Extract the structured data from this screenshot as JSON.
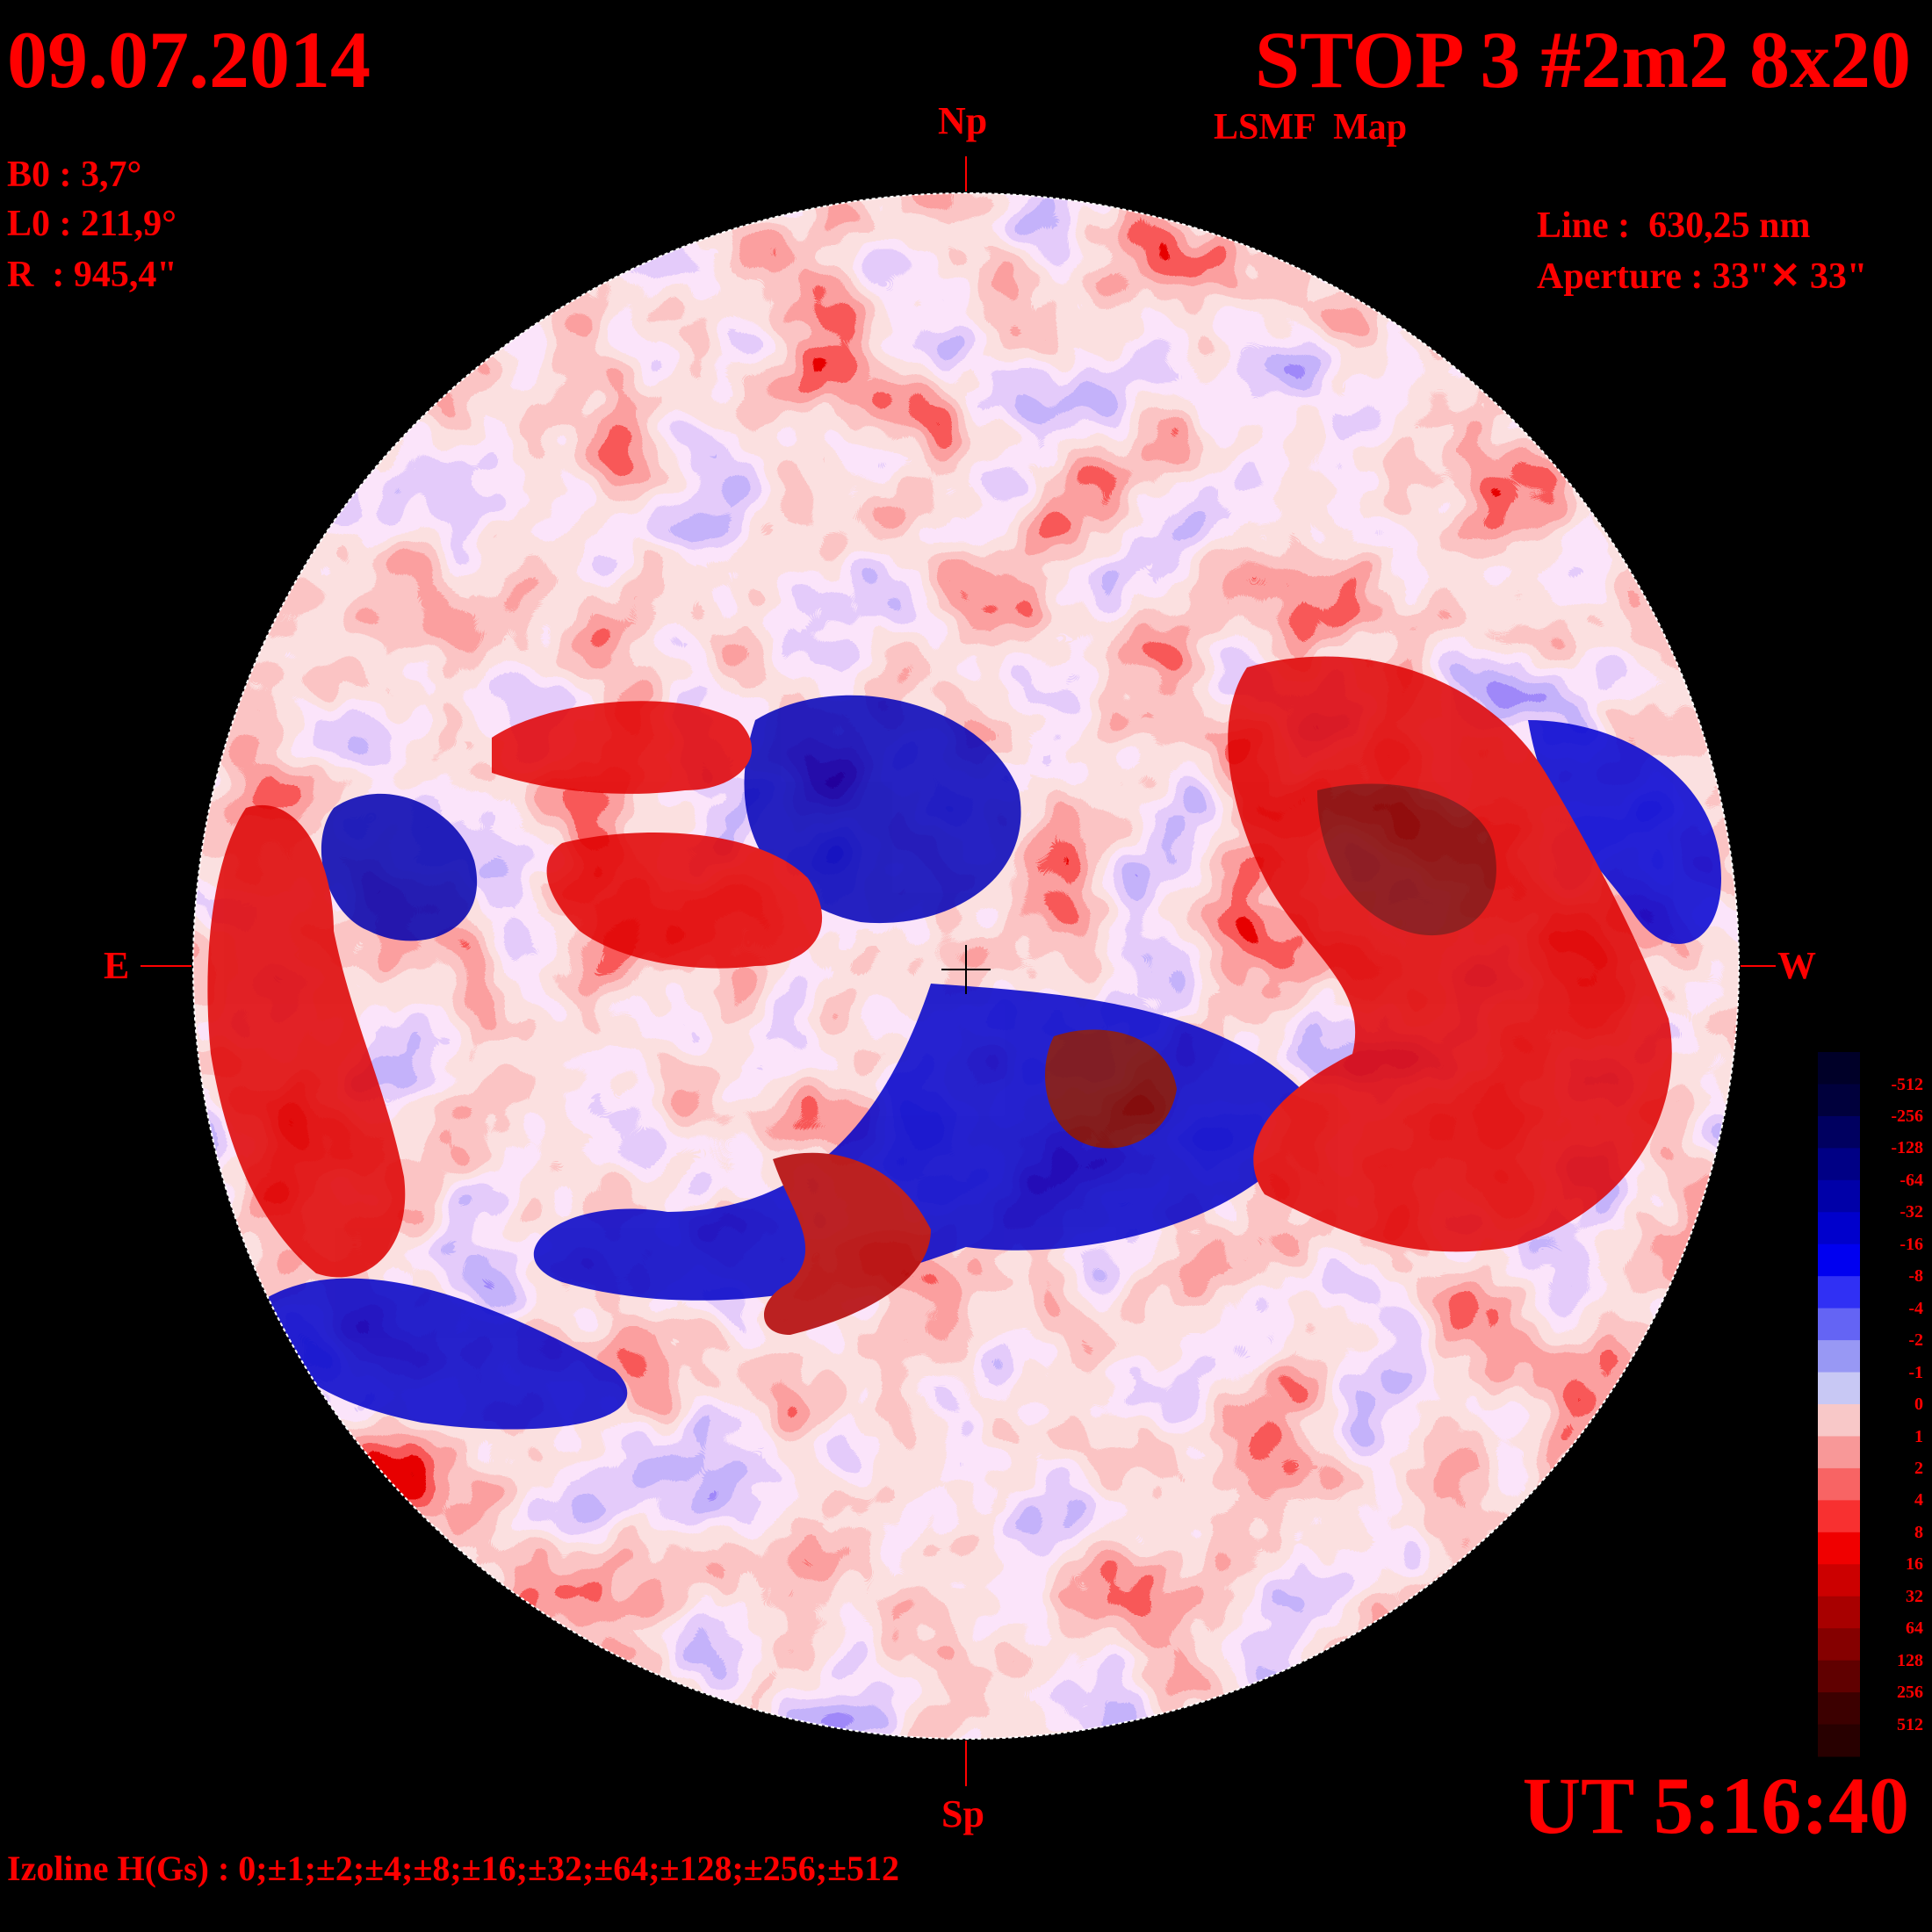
{
  "header": {
    "date": "09.07.2014",
    "title": "STOP 3 #2m2 8x20",
    "subtitle": "LSMF  Map"
  },
  "parameters": {
    "b0": "B0 : 3,7°",
    "l0": "L0 : 211,9°",
    "r": "R  : 945,4\""
  },
  "instrument": {
    "line": "Line :  630,25 nm",
    "aperture": "Aperture : 33\"✕ 33\""
  },
  "directions": {
    "north": "Np",
    "south": "Sp",
    "east": "E",
    "west": "W"
  },
  "time": "UT 5:16:40",
  "izoline": "Izoline H(Gs) : 0;±1;±2;±4;±8;±16;±32;±64;±128;±256;±512",
  "color_scale": {
    "labels": [
      "-512",
      "-256",
      "-128",
      "-64",
      "-32",
      "-16",
      "-8",
      "-4",
      "-2",
      "-1",
      "0",
      "1",
      "2",
      "4",
      "8",
      "16",
      "32",
      "64",
      "128",
      "256",
      "512"
    ],
    "colors": [
      "#000028",
      "#00003c",
      "#000060",
      "#000085",
      "#0000a8",
      "#0000cc",
      "#0000f0",
      "#3030f4",
      "#6464f4",
      "#9898f4",
      "#c8c8f4",
      "#f8c8c8",
      "#f89898",
      "#f86464",
      "#f83030",
      "#f00000",
      "#cc0000",
      "#a80000",
      "#850000",
      "#600000",
      "#3c0000",
      "#280000"
    ]
  },
  "colors": {
    "text": "#ff0000",
    "background": "#000000"
  }
}
